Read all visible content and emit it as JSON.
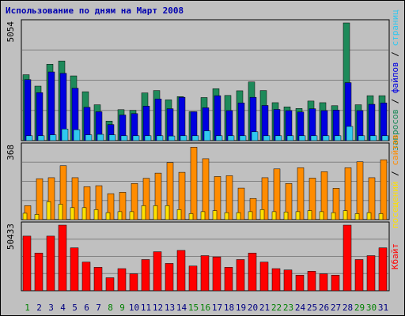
{
  "title": "Использование по дням на Март 2008",
  "colors": {
    "hits": "#1e8a5a",
    "files": "#0000e0",
    "pages": "#30c8f0",
    "visits": "#ff8c00",
    "sites": "#ffe000",
    "kbytes": "#ff0000",
    "weekday": "#000080",
    "weekend": "#008000"
  },
  "right_labels": {
    "top": [
      {
        "text": "запросов",
        "color": "#1e8a5a"
      },
      {
        "text": " / ",
        "color": "#000000"
      },
      {
        "text": "файлов",
        "color": "#0000e0"
      },
      {
        "text": " / ",
        "color": "#000000"
      },
      {
        "text": "страниц",
        "color": "#30c8f0"
      }
    ],
    "middle": [
      {
        "text": "посещений",
        "color": "#ffe000"
      },
      {
        "text": " / ",
        "color": "#000000"
      },
      {
        "text": "сайтов",
        "color": "#ff8c00"
      }
    ],
    "bottom": [
      {
        "text": "Кбайт",
        "color": "#ff0000"
      }
    ]
  },
  "chart_data": [
    {
      "type": "bar",
      "name": "requests-files-pages",
      "ymax_label": "5054",
      "ylim": [
        0,
        5054
      ],
      "categories": [
        "1",
        "2",
        "3",
        "4",
        "5",
        "6",
        "7",
        "8",
        "9",
        "10",
        "11",
        "12",
        "13",
        "14",
        "15",
        "16",
        "17",
        "18",
        "19",
        "20",
        "21",
        "22",
        "23",
        "24",
        "25",
        "26",
        "27",
        "28",
        "29",
        "30",
        "31"
      ],
      "weekend_days": [
        "1",
        "8",
        "9",
        "15",
        "16",
        "22",
        "23",
        "29",
        "30"
      ],
      "series": [
        {
          "name": "запросов",
          "values": [
            2830,
            2340,
            3280,
            3420,
            2780,
            2100,
            1540,
            840,
            1330,
            1300,
            2050,
            2150,
            1750,
            1890,
            1240,
            1850,
            2230,
            1940,
            2140,
            2520,
            2150,
            1630,
            1450,
            1380,
            1700,
            1630,
            1500,
            5054,
            1540,
            1930,
            1930
          ]
        },
        {
          "name": "файлов",
          "values": [
            2620,
            2060,
            2950,
            2890,
            2250,
            1430,
            1240,
            690,
            1100,
            1160,
            1480,
            1790,
            1370,
            1860,
            1240,
            1410,
            1930,
            1290,
            1620,
            1860,
            1510,
            1340,
            1290,
            1230,
            1370,
            1290,
            1310,
            2490,
            1290,
            1560,
            1620
          ]
        },
        {
          "name": "страниц",
          "values": [
            210,
            210,
            250,
            500,
            470,
            250,
            270,
            250,
            210,
            210,
            210,
            210,
            200,
            210,
            210,
            420,
            210,
            210,
            210,
            380,
            210,
            210,
            210,
            210,
            210,
            210,
            210,
            610,
            210,
            210,
            210
          ]
        }
      ]
    },
    {
      "type": "bar",
      "name": "visits-sites",
      "ymax_label": "368",
      "ylim": [
        0,
        368
      ],
      "categories": [
        "1",
        "2",
        "3",
        "4",
        "5",
        "6",
        "7",
        "8",
        "9",
        "10",
        "11",
        "12",
        "13",
        "14",
        "15",
        "16",
        "17",
        "18",
        "19",
        "20",
        "21",
        "22",
        "23",
        "24",
        "25",
        "26",
        "27",
        "28",
        "29",
        "30",
        "31"
      ],
      "series": [
        {
          "name": "сайтов",
          "values": [
            70,
            205,
            210,
            270,
            210,
            165,
            170,
            130,
            137,
            181,
            207,
            233,
            286,
            237,
            363,
            305,
            216,
            220,
            158,
            106,
            210,
            254,
            181,
            260,
            208,
            240,
            157,
            260,
            290,
            210,
            300
          ]
        },
        {
          "name": "посещений",
          "values": [
            32,
            26,
            90,
            77,
            60,
            60,
            50,
            35,
            40,
            40,
            70,
            70,
            70,
            50,
            30,
            40,
            45,
            35,
            35,
            40,
            50,
            40,
            38,
            40,
            45,
            40,
            35,
            45,
            30,
            35,
            30
          ]
        }
      ]
    },
    {
      "type": "bar",
      "name": "kbytes",
      "ymax_label": "50433",
      "ylim": [
        0,
        50433
      ],
      "categories": [
        "1",
        "2",
        "3",
        "4",
        "5",
        "6",
        "7",
        "8",
        "9",
        "10",
        "11",
        "12",
        "13",
        "14",
        "15",
        "16",
        "17",
        "18",
        "19",
        "20",
        "21",
        "22",
        "23",
        "24",
        "25",
        "26",
        "27",
        "28",
        "29",
        "30",
        "31"
      ],
      "series": [
        {
          "name": "Кбайт",
          "values": [
            42000,
            29000,
            42000,
            50433,
            33000,
            22000,
            18000,
            10000,
            17000,
            13000,
            24000,
            30000,
            21000,
            31000,
            19000,
            27000,
            26000,
            18000,
            24000,
            29000,
            22000,
            17000,
            16000,
            12000,
            15000,
            13000,
            12000,
            50433,
            24000,
            27000,
            33000
          ]
        }
      ]
    }
  ]
}
